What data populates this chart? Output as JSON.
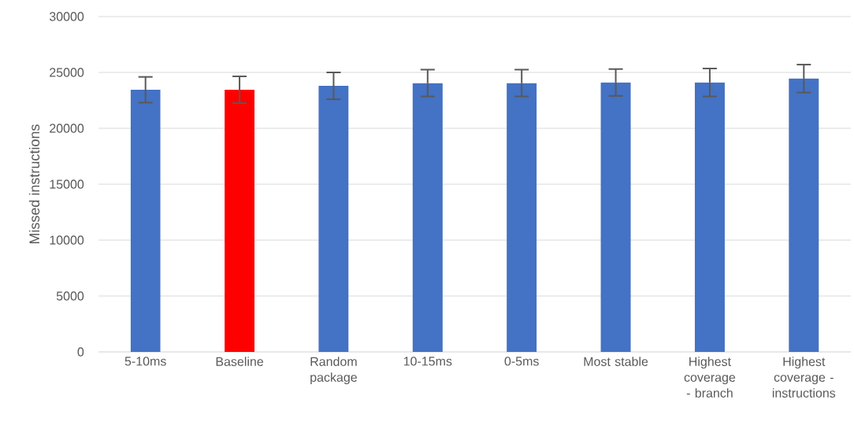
{
  "chart_data": {
    "type": "bar",
    "ylabel": "Missed instructions",
    "categories": [
      "5-10ms",
      "Baseline",
      "Random package",
      "10-15ms",
      "0-5ms",
      "Most stable",
      "Highest coverage - branch",
      "Highest coverage - instructions"
    ],
    "values": [
      23450,
      23450,
      23800,
      24050,
      24050,
      24100,
      24100,
      24450
    ],
    "errors": [
      1150,
      1200,
      1200,
      1200,
      1200,
      1200,
      1250,
      1250
    ],
    "colors": [
      "#4472c4",
      "#ff0000",
      "#4472c4",
      "#4472c4",
      "#4472c4",
      "#4472c4",
      "#4472c4",
      "#4472c4"
    ],
    "ylim": [
      0,
      30000
    ],
    "yticks": [
      0,
      5000,
      10000,
      15000,
      20000,
      25000,
      30000
    ],
    "grid": "y"
  }
}
